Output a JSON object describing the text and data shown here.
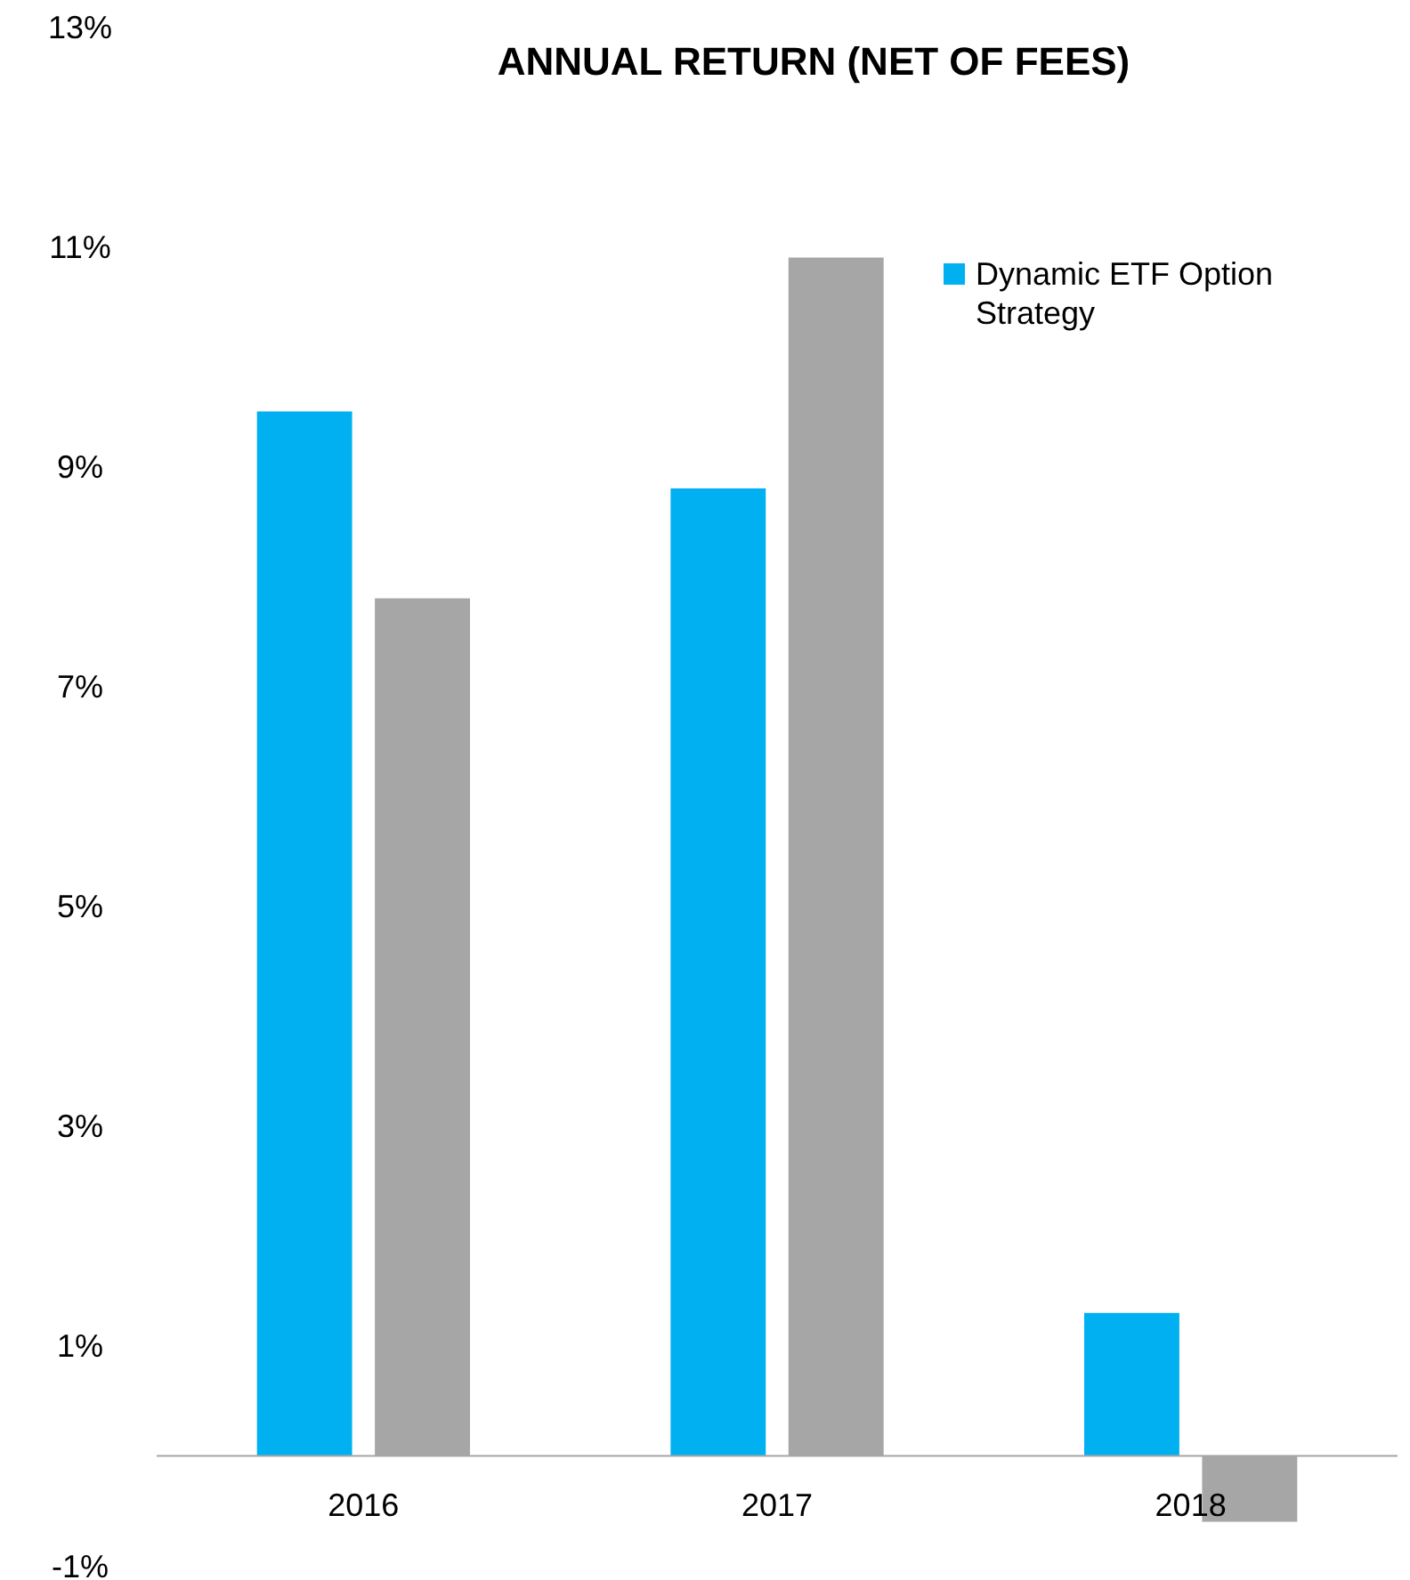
{
  "chart_data": {
    "type": "bar",
    "title": "ANNUAL RETURN (NET OF FEES)",
    "categories": [
      "2016",
      "2017",
      "2018"
    ],
    "series": [
      {
        "name": "Dynamic ETF Option Strategy",
        "color": "#00b0f0",
        "values": [
          9.5,
          8.8,
          1.3
        ]
      },
      {
        "color": "#a6a6a6",
        "values": [
          7.8,
          10.9,
          -0.6
        ]
      }
    ],
    "ylim": [
      -1,
      13
    ],
    "yticks": [
      {
        "value": -1,
        "label": "-1%"
      },
      {
        "value": 1,
        "label": "1%"
      },
      {
        "value": 3,
        "label": "3%"
      },
      {
        "value": 5,
        "label": "5%"
      },
      {
        "value": 7,
        "label": "7%"
      },
      {
        "value": 9,
        "label": "9%"
      },
      {
        "value": 11,
        "label": "11%"
      },
      {
        "value": 13,
        "label": "13%"
      }
    ],
    "grid": false,
    "legend": "top right"
  }
}
